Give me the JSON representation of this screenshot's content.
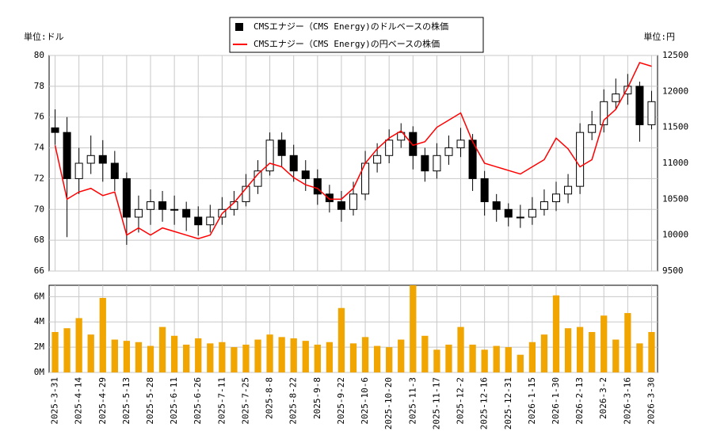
{
  "chart_data": [
    {
      "type": "candlestick",
      "y_label": "単位:ドル",
      "y2_label": "単位:円",
      "ylim": [
        66,
        80
      ],
      "yticks": [
        66,
        68,
        70,
        72,
        74,
        76,
        78,
        80
      ],
      "y2lim": [
        9500,
        12500
      ],
      "y2ticks": [
        9500,
        10000,
        10500,
        11000,
        11500,
        12000,
        12500
      ],
      "grid": true,
      "legend": "top",
      "series": [
        {
          "name": "CMSエナジー（CMS Energy)のドルベースの株価",
          "color": "#000000",
          "open": [
            75.3,
            75.0,
            72.0,
            73.0,
            73.5,
            73.0,
            72.0,
            69.5,
            70.0,
            70.5,
            70.0,
            70.0,
            69.5,
            69.0,
            69.5,
            70.0,
            70.5,
            71.5,
            72.5,
            74.5,
            73.5,
            72.5,
            72.0,
            71.0,
            70.5,
            70.0,
            71.0,
            73.0,
            73.5,
            74.5,
            75.0,
            73.5,
            72.5,
            73.5,
            74.0,
            74.5,
            72.0,
            70.5,
            70.0,
            69.5,
            69.5,
            70.0,
            70.5,
            71.0,
            71.5,
            75.0,
            75.5,
            77.0,
            77.5,
            78.0,
            75.5
          ],
          "high": [
            76.5,
            76.0,
            74.0,
            74.8,
            74.5,
            73.8,
            72.4,
            70.9,
            71.3,
            71.2,
            70.9,
            70.5,
            70.2,
            70.3,
            70.8,
            71.2,
            72.3,
            73.2,
            75.0,
            75.0,
            74.2,
            73.2,
            72.6,
            71.6,
            71.2,
            71.8,
            73.8,
            74.3,
            75.2,
            75.6,
            75.4,
            74.0,
            74.3,
            74.8,
            75.3,
            74.9,
            72.5,
            71.0,
            70.4,
            70.3,
            70.8,
            71.3,
            71.8,
            72.3,
            75.6,
            76.4,
            77.8,
            78.5,
            78.8,
            78.3,
            77.7
          ],
          "low": [
            74.2,
            68.2,
            71.0,
            72.3,
            71.8,
            71.2,
            67.7,
            68.5,
            69.0,
            69.2,
            69.0,
            68.6,
            68.3,
            68.5,
            69.0,
            69.6,
            70.2,
            71.0,
            72.2,
            72.8,
            71.8,
            71.2,
            70.3,
            69.8,
            69.2,
            69.6,
            70.6,
            72.4,
            73.0,
            74.0,
            72.6,
            71.8,
            72.0,
            72.9,
            73.4,
            71.2,
            69.6,
            69.2,
            68.9,
            68.8,
            69.0,
            69.6,
            69.9,
            70.4,
            71.0,
            74.5,
            75.0,
            76.5,
            76.8,
            74.4,
            75.2
          ],
          "close": [
            75.0,
            72.0,
            73.0,
            73.5,
            73.0,
            72.0,
            69.5,
            70.0,
            70.5,
            70.0,
            70.0,
            69.5,
            69.0,
            69.5,
            70.0,
            70.5,
            71.5,
            72.5,
            74.5,
            73.5,
            72.5,
            72.0,
            71.0,
            70.5,
            70.0,
            71.0,
            73.0,
            73.5,
            74.5,
            75.0,
            73.5,
            72.5,
            73.5,
            74.0,
            74.5,
            72.0,
            70.5,
            70.0,
            69.5,
            69.5,
            70.0,
            70.5,
            71.0,
            71.5,
            75.0,
            75.5,
            77.0,
            77.5,
            78.0,
            75.5,
            77.0
          ]
        },
        {
          "name": "CMSエナジー（CMS Energy)の円ベースの株価",
          "color": "#ff0000",
          "axis": "y2",
          "values": [
            11250,
            10500,
            10600,
            10650,
            10550,
            10600,
            10000,
            10100,
            10000,
            10100,
            10050,
            10000,
            9950,
            10000,
            10300,
            10450,
            10650,
            10850,
            11000,
            10950,
            10800,
            10700,
            10650,
            10500,
            10500,
            10650,
            11000,
            11200,
            11350,
            11450,
            11250,
            11300,
            11500,
            11600,
            11700,
            11300,
            11000,
            10950,
            10900,
            10850,
            10950,
            11050,
            11350,
            11200,
            10950,
            11050,
            11600,
            11750,
            12050,
            12400,
            12350
          ]
        }
      ]
    },
    {
      "type": "bar",
      "color": "#f0a500",
      "grid": true,
      "categories": [
        "2025-3-31",
        null,
        "2025-4-14",
        null,
        "2025-4-29",
        null,
        "2025-5-13",
        null,
        "2025-5-28",
        null,
        "2025-6-11",
        null,
        "2025-6-26",
        null,
        "2025-7-11",
        null,
        "2025-7-25",
        null,
        "2025-8-8",
        null,
        "2025-8-22",
        null,
        "2025-9-8",
        null,
        "2025-9-22",
        null,
        "2025-10-6",
        null,
        "2025-10-20",
        null,
        "2025-11-3",
        null,
        "2025-11-17",
        null,
        "2025-12-2",
        null,
        "2025-12-16",
        null,
        "2025-12-31",
        null,
        "2026-1-15",
        null,
        "2026-1-30",
        null,
        "2026-2-13",
        null,
        "2026-3-2",
        null,
        "2026-3-16",
        null,
        "2026-3-30"
      ],
      "values": [
        3.2,
        3.5,
        4.3,
        3.0,
        5.9,
        2.6,
        2.5,
        2.4,
        2.1,
        3.6,
        2.9,
        2.2,
        2.7,
        2.3,
        2.4,
        2.0,
        2.2,
        2.6,
        3.0,
        2.8,
        2.7,
        2.5,
        2.2,
        2.4,
        5.1,
        2.3,
        2.8,
        2.1,
        2.0,
        2.6,
        6.9,
        2.9,
        1.8,
        2.2,
        3.6,
        2.2,
        1.8,
        2.1,
        2.0,
        1.4,
        2.4,
        3.0,
        6.1,
        3.5,
        3.6,
        3.2,
        4.5,
        2.6,
        4.7,
        2.3,
        3.2
      ],
      "ylim": [
        0,
        6.9
      ],
      "yticks": [
        {
          "value": 0,
          "label": "0M"
        },
        {
          "value": 2,
          "label": "2M"
        },
        {
          "value": 4,
          "label": "4M"
        },
        {
          "value": 6,
          "label": "6M"
        }
      ]
    }
  ]
}
